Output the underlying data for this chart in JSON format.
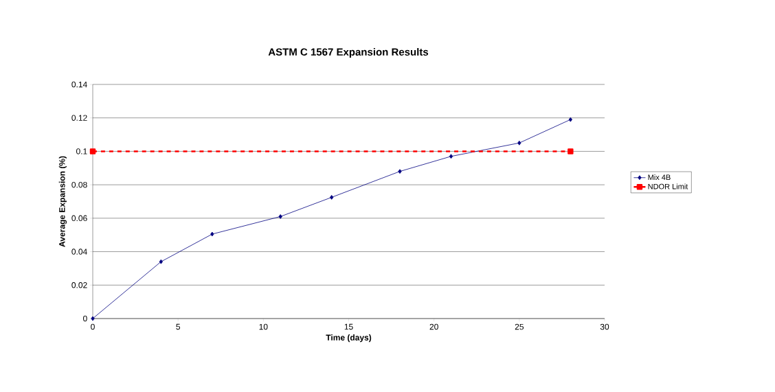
{
  "chart_data": {
    "type": "line",
    "title": "ASTM C 1567 Expansion Results",
    "xlabel": "Time (days)",
    "ylabel": "Average Expansion (%)",
    "xlim": [
      0,
      30
    ],
    "xticks": [
      0,
      5,
      10,
      15,
      20,
      25,
      30
    ],
    "ylim": [
      0,
      0.14
    ],
    "yticks": [
      0,
      0.02,
      0.04,
      0.06,
      0.08,
      0.1,
      0.12,
      0.14
    ],
    "grid": "y",
    "legend": "right",
    "series": [
      {
        "name": "Mix 4B",
        "color": "#000080",
        "marker": "diamond",
        "line_style": "solid",
        "x": [
          0,
          4,
          7,
          11,
          14,
          18,
          21,
          25,
          28
        ],
        "values": [
          0,
          0.034,
          0.0505,
          0.061,
          0.0725,
          0.088,
          0.097,
          0.105,
          0.119
        ]
      },
      {
        "name": "NDOR Limit",
        "color": "#ff0000",
        "marker": "square",
        "line_style": "dashed",
        "x": [
          0,
          28
        ],
        "values": [
          0.1,
          0.1
        ]
      }
    ]
  }
}
